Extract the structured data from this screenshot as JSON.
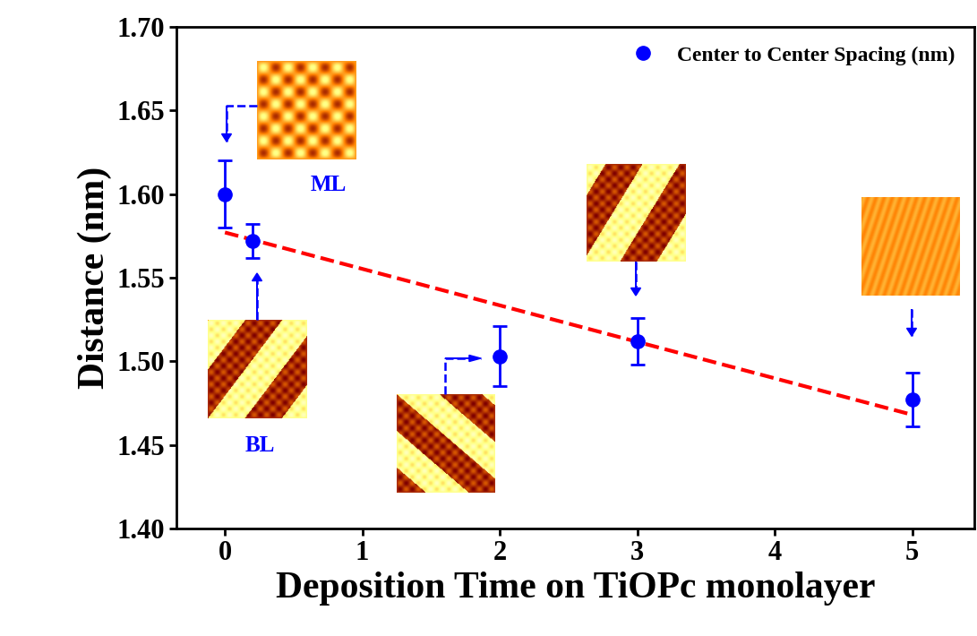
{
  "chart_data": {
    "type": "scatter",
    "x_label": "Deposition Time on TiOPc monolayer",
    "y_label": "Distance (nm)",
    "annotations": [
      "ML",
      "BL"
    ],
    "series": [
      {
        "name": "Center to Center Spacing (nm)",
        "type": "scatter",
        "color": "#0000ff",
        "marker": "circle",
        "x": [
          0,
          0.2,
          2,
          3,
          5
        ],
        "values": [
          1.6,
          1.572,
          1.503,
          1.512,
          1.477
        ],
        "errors": [
          0.02,
          0.01,
          0.018,
          0.014,
          0.016
        ]
      },
      {
        "type": "line",
        "color": "#ff0000",
        "line_style": "dashed",
        "x": [
          0,
          5
        ],
        "values": [
          1.577,
          1.468
        ]
      }
    ],
    "xlim": [
      -0.35,
      5.45
    ],
    "xticks": [
      0,
      1,
      2,
      3,
      4,
      5
    ],
    "ylim": [
      1.4,
      1.7
    ],
    "yticks": [
      {
        "value": 1.4,
        "label": "1.40"
      },
      1.45,
      {
        "value": 1.5,
        "label": "1.50"
      },
      1.55,
      {
        "value": 1.6,
        "label": "1.60"
      },
      1.65,
      {
        "value": 1.7,
        "label": "1.70"
      }
    ],
    "legend": "upper right",
    "grid": false
  }
}
